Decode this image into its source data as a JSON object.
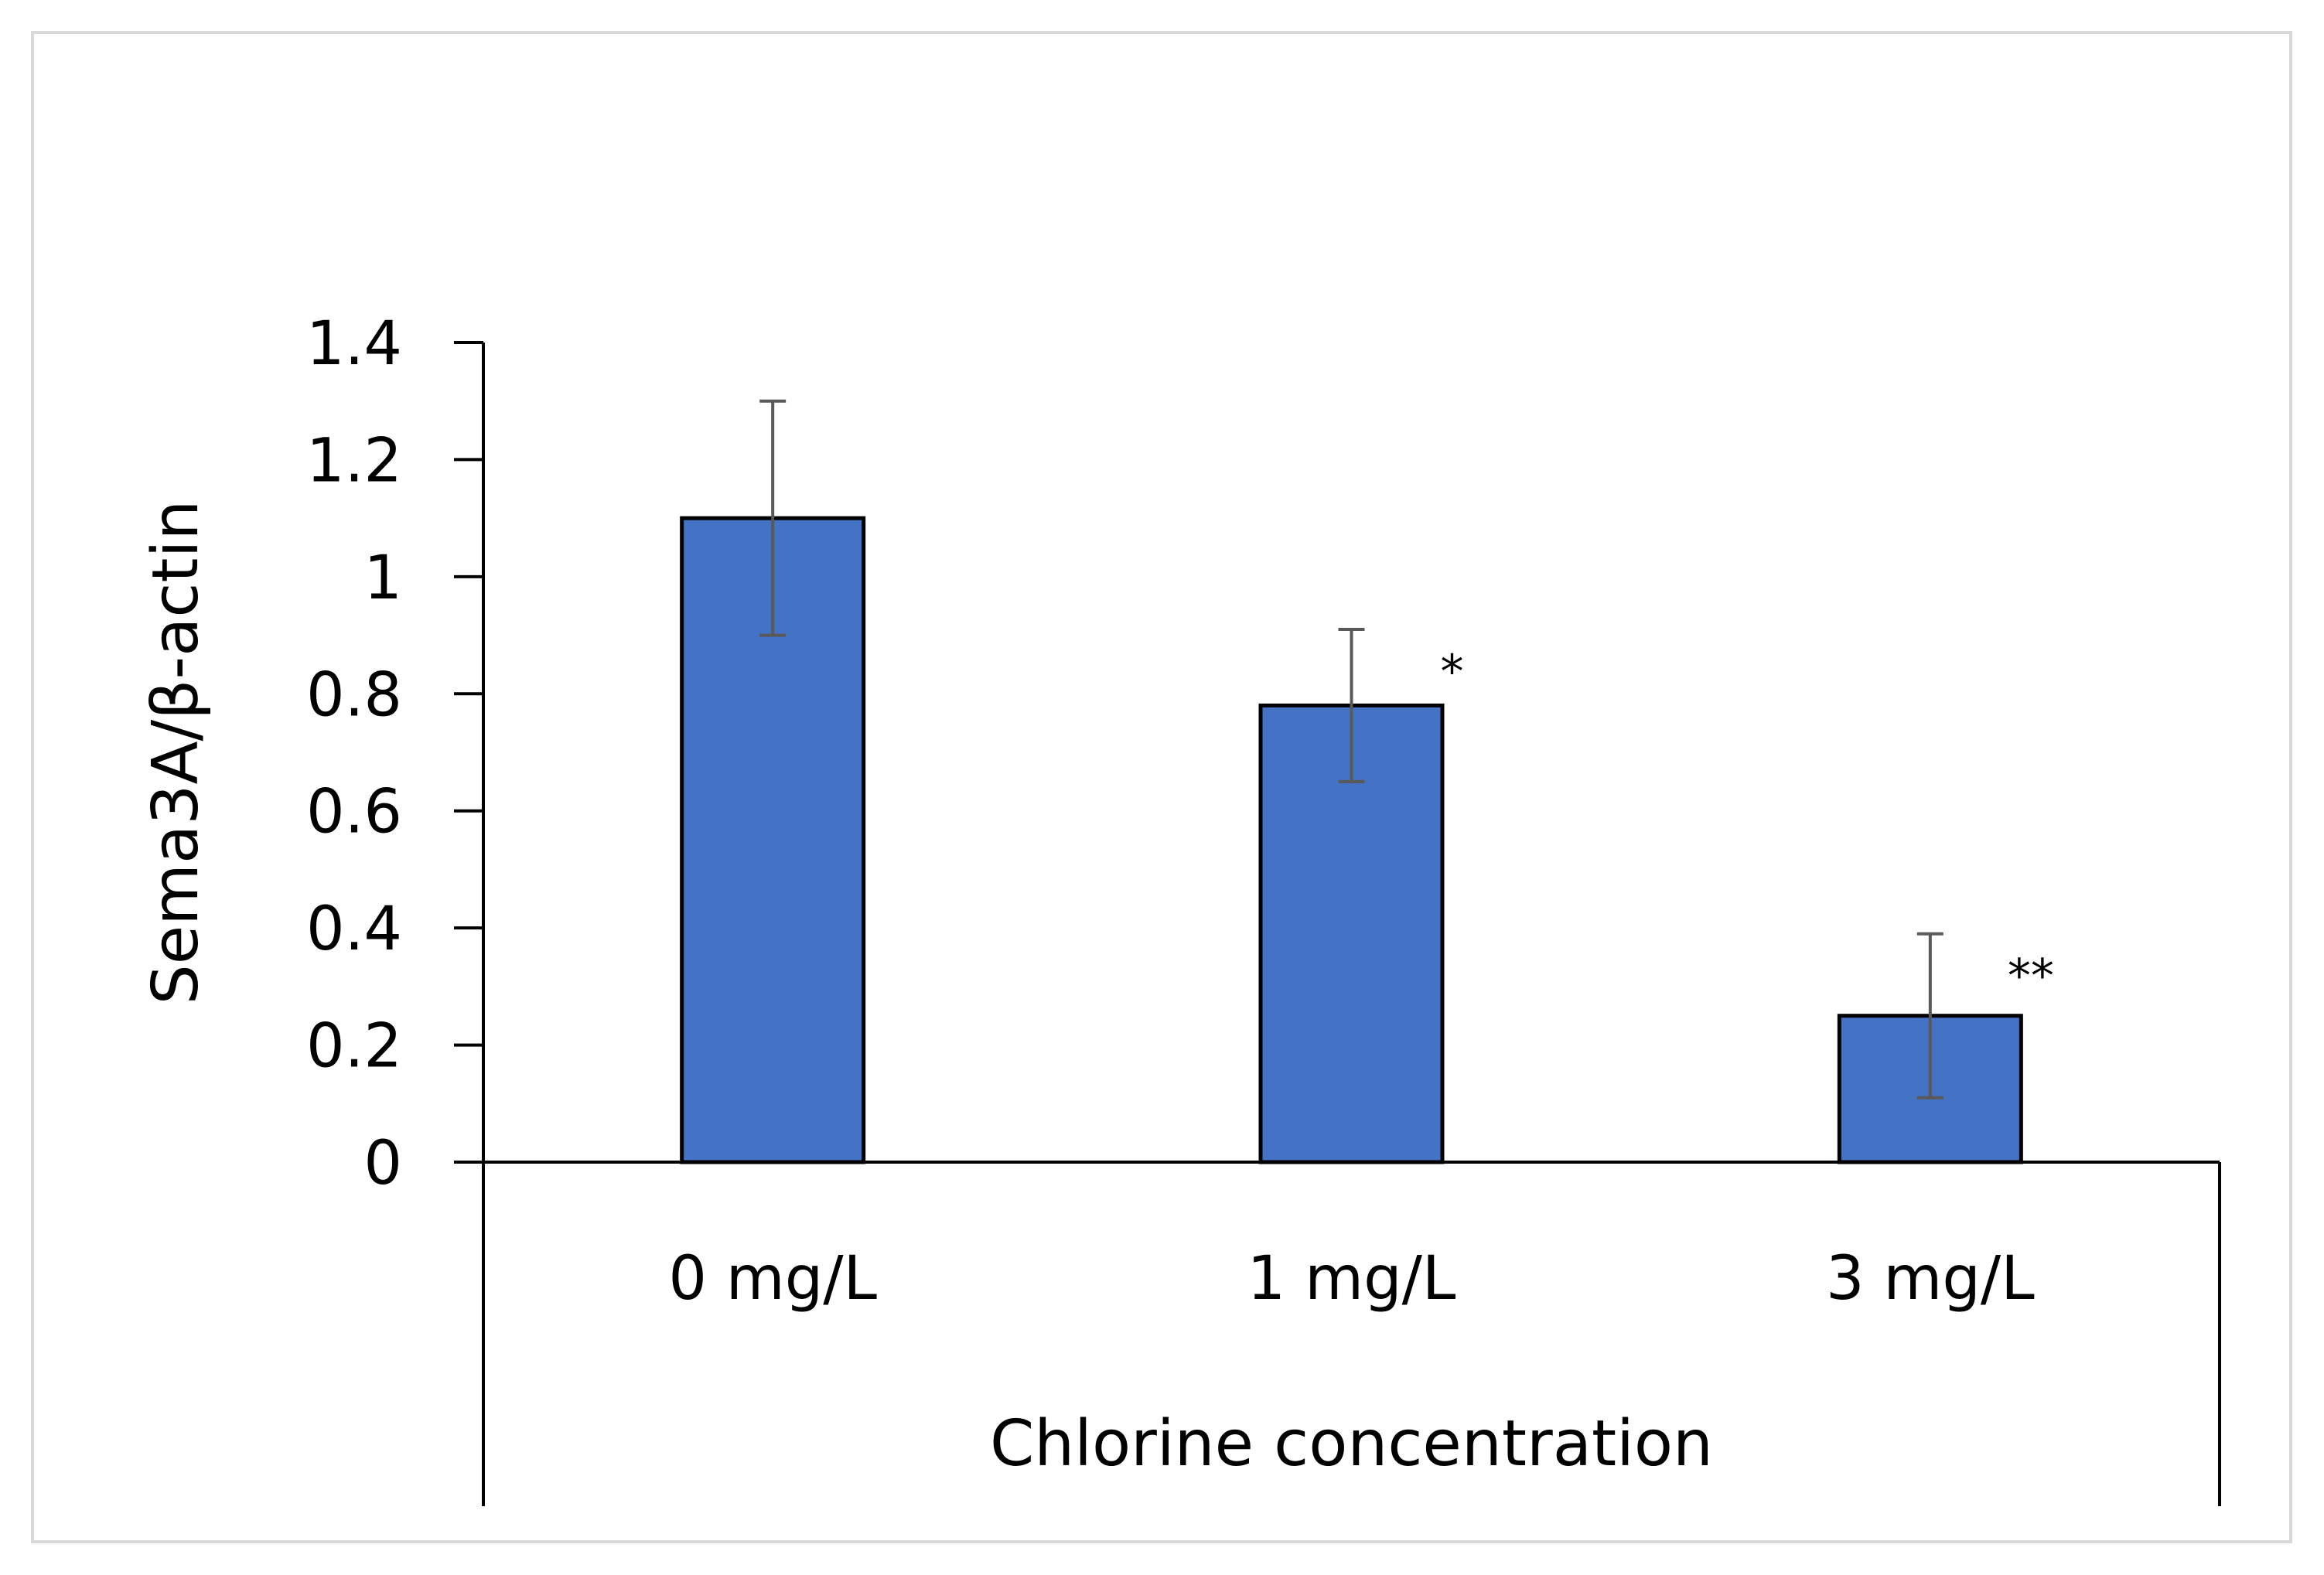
{
  "chart_data": {
    "type": "bar",
    "categories": [
      "0 mg/L",
      "1 mg/L",
      "3 mg/L"
    ],
    "values": [
      1.1,
      0.78,
      0.25
    ],
    "error": [
      0.2,
      0.13,
      0.14
    ],
    "annotations": [
      "",
      "*",
      "**"
    ],
    "xlabel": "Chlorine concentration",
    "ylabel": "Sema3A/β-actin",
    "ylim": [
      0,
      1.4
    ],
    "yticks": [
      "0",
      "0.2",
      "0.4",
      "0.6",
      "0.8",
      "1",
      "1.2",
      "1.4"
    ],
    "grid": false,
    "colors": {
      "bar": "#4472C4",
      "bar_edge": "#000000",
      "error_bar": "#595959",
      "frame": "#d9d9d9"
    }
  }
}
